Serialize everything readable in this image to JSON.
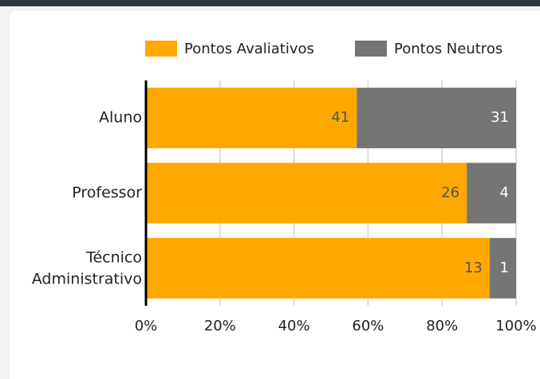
{
  "chart_data": {
    "type": "bar",
    "orientation": "horizontal",
    "stacked": "percent",
    "categories": [
      "Aluno",
      "Professor",
      "Técnico Administrativo"
    ],
    "series": [
      {
        "name": "Pontos Avaliativos",
        "color": "#FFA800",
        "values": [
          41,
          26,
          13
        ]
      },
      {
        "name": "Pontos Neutros",
        "color": "#757575",
        "values": [
          31,
          4,
          1
        ]
      }
    ],
    "xlim": [
      0,
      100
    ],
    "xticks": [
      {
        "value": 0,
        "label": "0%"
      },
      {
        "value": 20,
        "label": "20%"
      },
      {
        "value": 40,
        "label": "40%"
      },
      {
        "value": 60,
        "label": "60%"
      },
      {
        "value": 80,
        "label": "80%"
      },
      {
        "value": 100,
        "label": "100%"
      }
    ],
    "grid": true,
    "legend": "top"
  }
}
